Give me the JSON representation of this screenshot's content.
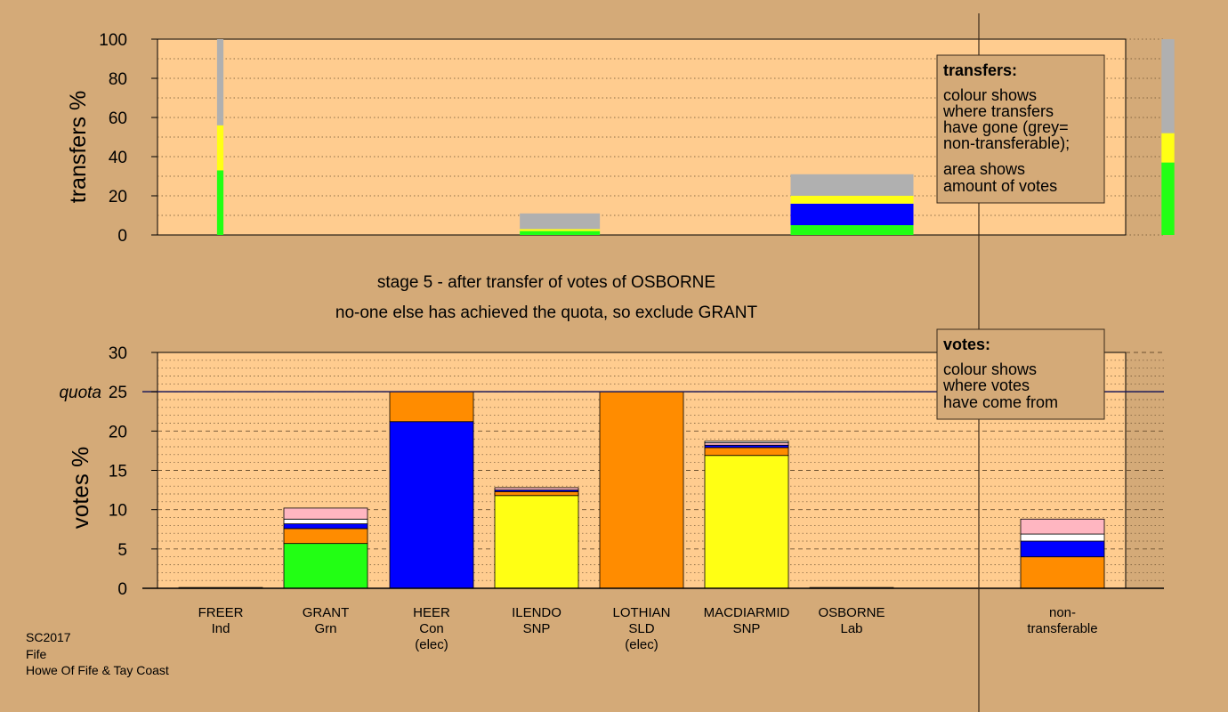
{
  "colors": {
    "background": "#d4aa78",
    "plot_bg": "#ffcc8f",
    "Grn": "#22ff14",
    "SNP": "#ffff14",
    "Con": "#0000ff",
    "SLD": "#ff8c00",
    "Lab": "#ffb6c1",
    "Ind": "#ffffff",
    "nontransferable": "#b0b0b0"
  },
  "headings": {
    "stage": "stage 5 - after transfer of votes of OSBORNE",
    "status": "no-one else has achieved the quota, so exclude GRANT"
  },
  "quota_label": "quota",
  "footer": [
    "SC2017",
    "Fife",
    "Howe Of Fife & Tay Coast"
  ],
  "legend_transfers": {
    "title": "transfers:",
    "lines1": [
      "colour shows",
      "where transfers",
      "have gone (grey=",
      "non-transferable);"
    ],
    "lines2": [
      "area shows",
      "amount of votes"
    ]
  },
  "legend_votes": {
    "title": "votes:",
    "lines": [
      "colour shows",
      "where votes",
      "have come from"
    ]
  },
  "chart_data": [
    {
      "type": "bar",
      "stacked": true,
      "ylabel": "transfers %",
      "ylim": [
        0,
        100
      ],
      "yticks": [
        0,
        20,
        40,
        60,
        80,
        100
      ],
      "grid": "dotted",
      "note": "bar width shows amount of votes transferred",
      "bars": [
        {
          "candidate": "FREER",
          "center": 1,
          "width": 0.06,
          "segments": [
            {
              "party": "Grn",
              "value": 33
            },
            {
              "party": "SNP",
              "value": 23
            },
            {
              "party": "nontransferable",
              "value": 44
            }
          ]
        },
        {
          "candidate": "HEER",
          "center": 3.15,
          "width": 0.75,
          "segments": [
            {
              "party": "Grn",
              "value": 2
            },
            {
              "party": "SNP",
              "value": 1
            },
            {
              "party": "nontransferable",
              "value": 8
            }
          ]
        },
        {
          "candidate": "LOTHIAN",
          "center": 5,
          "width": 1.15,
          "segments": [
            {
              "party": "Grn",
              "value": 5
            },
            {
              "party": "Con",
              "value": 11
            },
            {
              "party": "SNP",
              "value": 4
            },
            {
              "party": "nontransferable",
              "value": 11
            }
          ]
        },
        {
          "candidate": "OSBORNE",
          "center": 7,
          "width": 0.12,
          "segments": [
            {
              "party": "Grn",
              "value": 37
            },
            {
              "party": "SNP",
              "value": 15
            },
            {
              "party": "nontransferable",
              "value": 48
            }
          ]
        }
      ]
    },
    {
      "type": "bar",
      "stacked": true,
      "ylabel": "votes %",
      "ylim": [
        0,
        30
      ],
      "yticks": [
        0,
        5,
        10,
        15,
        20,
        25,
        30
      ],
      "quota": 25,
      "categories": [
        "FREER",
        "GRANT",
        "HEER",
        "ILENDO",
        "LOTHIAN",
        "MACDIARMID",
        "OSBORNE",
        "non-transferable"
      ],
      "category_labels": [
        [
          "FREER",
          "Ind"
        ],
        [
          "GRANT",
          "Grn"
        ],
        [
          "HEER",
          "Con",
          "(elec)"
        ],
        [
          "ILENDO",
          "SNP"
        ],
        [
          "LOTHIAN",
          "SLD",
          "(elec)"
        ],
        [
          "MACDIARMID",
          "SNP"
        ],
        [
          "OSBORNE",
          "Lab"
        ],
        [
          "non-",
          "transferable"
        ]
      ],
      "bars": [
        [
          {
            "party": "Ind",
            "value": 0.1
          }
        ],
        [
          {
            "party": "Grn",
            "value": 5.7
          },
          {
            "party": "SLD",
            "value": 1.9
          },
          {
            "party": "Con",
            "value": 0.6
          },
          {
            "party": "Ind",
            "value": 0.6
          },
          {
            "party": "Lab",
            "value": 1.4
          }
        ],
        [
          {
            "party": "Con",
            "value": 21.2
          },
          {
            "party": "SLD",
            "value": 3.8
          }
        ],
        [
          {
            "party": "SNP",
            "value": 11.8
          },
          {
            "party": "SLD",
            "value": 0.5
          },
          {
            "party": "Con",
            "value": 0.2
          },
          {
            "party": "Lab",
            "value": 0.3
          }
        ],
        [
          {
            "party": "SLD",
            "value": 25.0
          }
        ],
        [
          {
            "party": "SNP",
            "value": 16.9
          },
          {
            "party": "SLD",
            "value": 1.0
          },
          {
            "party": "Con",
            "value": 0.3
          },
          {
            "party": "Lab",
            "value": 0.3
          },
          {
            "party": "Ind",
            "value": 0.2
          }
        ],
        [
          {
            "party": "Lab",
            "value": 0.1
          }
        ],
        [
          {
            "party": "SLD",
            "value": 4.0
          },
          {
            "party": "Con",
            "value": 2.0
          },
          {
            "party": "Ind",
            "value": 0.9
          },
          {
            "party": "Lab",
            "value": 1.9
          }
        ]
      ]
    }
  ]
}
